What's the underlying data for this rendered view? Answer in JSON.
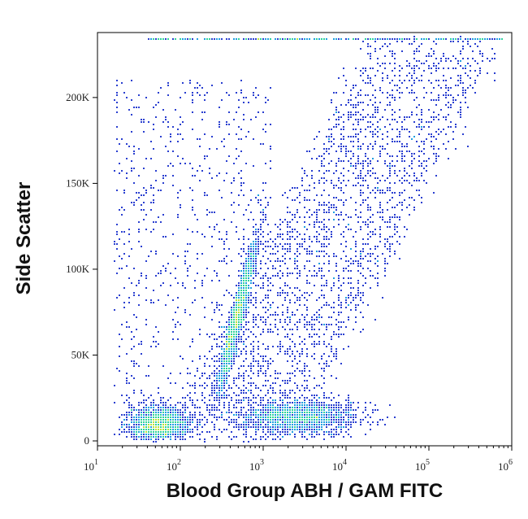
{
  "chart_data": {
    "type": "scatter",
    "subtype": "flow-cytometry-density-dot-plot",
    "xlabel": "Blood Group ABH / GAM FITC",
    "ylabel": "Side Scatter",
    "x_scale": "log",
    "xlim": [
      10,
      1000000
    ],
    "ylim": [
      0,
      235000
    ],
    "x_ticks": [
      {
        "value": 10,
        "base": "10",
        "exp": "1"
      },
      {
        "value": 100,
        "base": "10",
        "exp": "2"
      },
      {
        "value": 1000,
        "base": "10",
        "exp": "3"
      },
      {
        "value": 10000,
        "base": "10",
        "exp": "4"
      },
      {
        "value": 100000,
        "base": "10",
        "exp": "5"
      },
      {
        "value": 1000000,
        "base": "10",
        "exp": "6"
      }
    ],
    "y_ticks": [
      {
        "value": 0,
        "label": "0"
      },
      {
        "value": 50000,
        "label": "50K"
      },
      {
        "value": 100000,
        "label": "100K"
      },
      {
        "value": 150000,
        "label": "150K"
      },
      {
        "value": 200000,
        "label": "200K"
      }
    ],
    "grid": false,
    "legend": "none",
    "color_scale": [
      "#1a1a9c",
      "#2a3fd0",
      "#1f9fe0",
      "#2fd39a",
      "#b8e23a",
      "#f2c21c",
      "#f06a12",
      "#c8141c"
    ],
    "populations": [
      {
        "x_median": 55,
        "x_spread_decades": 0.18,
        "y_median": 10000,
        "y_spread": 5000,
        "density": "high"
      },
      {
        "x_median": 480,
        "x_spread_decades": 0.1,
        "y_median": 72000,
        "y_spread": 22000,
        "density": "high"
      },
      {
        "x_median": 2600,
        "x_spread_decades": 0.35,
        "y_median": 14000,
        "y_spread": 5000,
        "density": "high"
      },
      {
        "x_median": 20000,
        "x_spread_decades": 0.45,
        "y_median": 120000,
        "y_spread": 60000,
        "density": "low"
      }
    ]
  }
}
